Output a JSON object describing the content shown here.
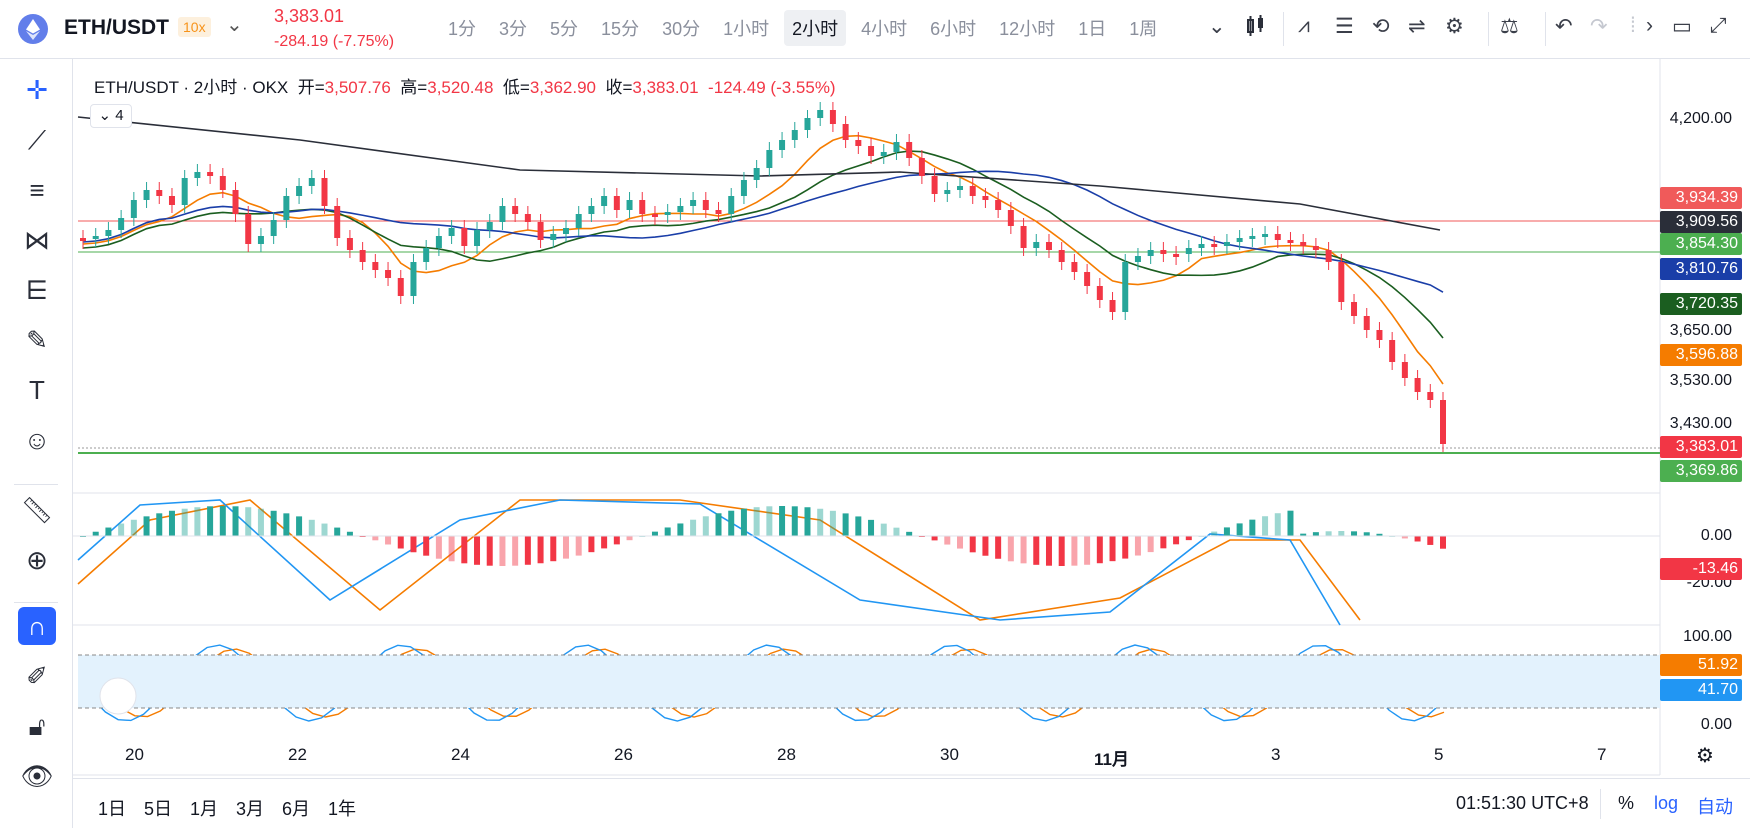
{
  "header": {
    "symbol": "ETH/USDT",
    "leverage": "10x",
    "price": "3,383.01",
    "change": "-284.19 (-7.75%)",
    "intervals": [
      "1分",
      "3分",
      "5分",
      "15分",
      "30分",
      "1小时",
      "2小时",
      "4小时",
      "6小时",
      "12小时",
      "1日",
      "1周"
    ],
    "active_interval": "2小时"
  },
  "legend": {
    "title": "ETH/USDT · 2小时 · OKX",
    "open_label": "开=",
    "open": "3,507.76",
    "high_label": "高=",
    "high": "3,520.48",
    "low_label": "低=",
    "low": "3,362.90",
    "close_label": "收=",
    "close": "3,383.01",
    "change": "-124.49 (-3.55%)",
    "indicators_count": "4"
  },
  "price_axis": {
    "levels": [
      "4,200.00",
      "3,650.00",
      "3,530.00",
      "3,430.00"
    ],
    "tags": [
      {
        "value": "3,934.39",
        "color": "#f05a5a"
      },
      {
        "value": "3,909.56",
        "color": "#2a2e39"
      },
      {
        "value": "3,854.30",
        "color": "#4caf50"
      },
      {
        "value": "3,810.76",
        "color": "#1a3ea8"
      },
      {
        "value": "3,720.35",
        "color": "#1b5e20"
      },
      {
        "value": "3,596.88",
        "color": "#f57c00"
      },
      {
        "value": "3,383.01",
        "color": "#f23645"
      },
      {
        "value": "3,369.86",
        "color": "#4caf50"
      }
    ]
  },
  "macd_axis": {
    "levels": [
      "0.00",
      "-20.00"
    ],
    "tag": "-13.46",
    "tag_color": "#f23645"
  },
  "stoch_axis": {
    "levels": [
      "100.00",
      "0.00"
    ],
    "tags": [
      {
        "value": "51.92",
        "color": "#f57c00"
      },
      {
        "value": "41.70",
        "color": "#2196f3"
      }
    ]
  },
  "time_axis": {
    "labels": [
      "20",
      "22",
      "24",
      "26",
      "28",
      "30",
      "11月",
      "3",
      "5",
      "7"
    ]
  },
  "bottom": {
    "ranges": [
      "1日",
      "5日",
      "1月",
      "3月",
      "6月",
      "1年"
    ],
    "clock": "01:51:30 UTC+8",
    "percent": "%",
    "log": "log",
    "auto": "自动"
  }
}
